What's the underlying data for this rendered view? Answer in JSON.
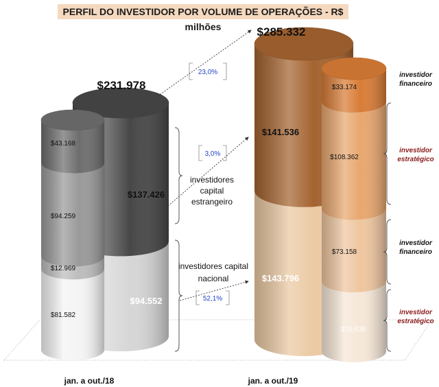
{
  "chart_data": {
    "type": "bar",
    "title": "PERFIL DO INVESTIDOR POR VOLUME DE OPERAÇÕES - R$ milhões",
    "categories": [
      "jan. a out./18",
      "jan. a out./19"
    ],
    "totals": [
      "$231.978",
      "$285.332"
    ],
    "groups": [
      {
        "name": "investidores capital estrangeiro",
        "label": "investidores capital estrangeiro",
        "values": [
          137.426,
          141.536
        ],
        "value_labels": [
          "$137.426",
          "$141.536"
        ],
        "growth": "3,0%"
      },
      {
        "name": "investidores capital nacional",
        "label": "investidores capital nacional",
        "values": [
          94.552,
          143.796
        ],
        "value_labels": [
          "$94.552",
          "$143.796"
        ],
        "growth": "52,1%"
      }
    ],
    "series": [
      {
        "name": "investidor financeiro",
        "group": "investidores capital estrangeiro",
        "values": [
          43.168,
          33.174
        ],
        "value_labels": [
          "$43.168",
          "$33.174"
        ]
      },
      {
        "name": "investidor estratégico",
        "group": "investidores capital estrangeiro",
        "values": [
          94.259,
          108.362
        ],
        "value_labels": [
          "$94.259",
          "$108.362"
        ]
      },
      {
        "name": "investidor financeiro",
        "group": "investidores capital nacional",
        "values": [
          12.969,
          73.158
        ],
        "value_labels": [
          "$12.969",
          "$73.158"
        ]
      },
      {
        "name": "investidor estratégico",
        "group": "investidores capital nacional",
        "values": [
          81.582,
          70.638
        ],
        "value_labels": [
          "$81.582",
          "$70.638"
        ]
      }
    ],
    "total_growth": "23,0%",
    "right_labels": [
      "investidor financeiro",
      "investidor estratégico",
      "investidor financeiro",
      "investidor estratégico"
    ],
    "colors": {
      "y18": [
        "#f4f4f4",
        "#bdbdbd",
        "#9a9a9a",
        "#6e6e6e"
      ],
      "y18_totals": [
        "#d6d6d6",
        "#474747"
      ],
      "y19": [
        "#f6e7d7",
        "#eec6a0",
        "#e8a76f",
        "#d87c36"
      ],
      "y19_totals": [
        "#ebc9a3",
        "#a4632f"
      ],
      "growth_text": "#1f3fc4",
      "estrategico_text": "#8b1a1a"
    }
  }
}
